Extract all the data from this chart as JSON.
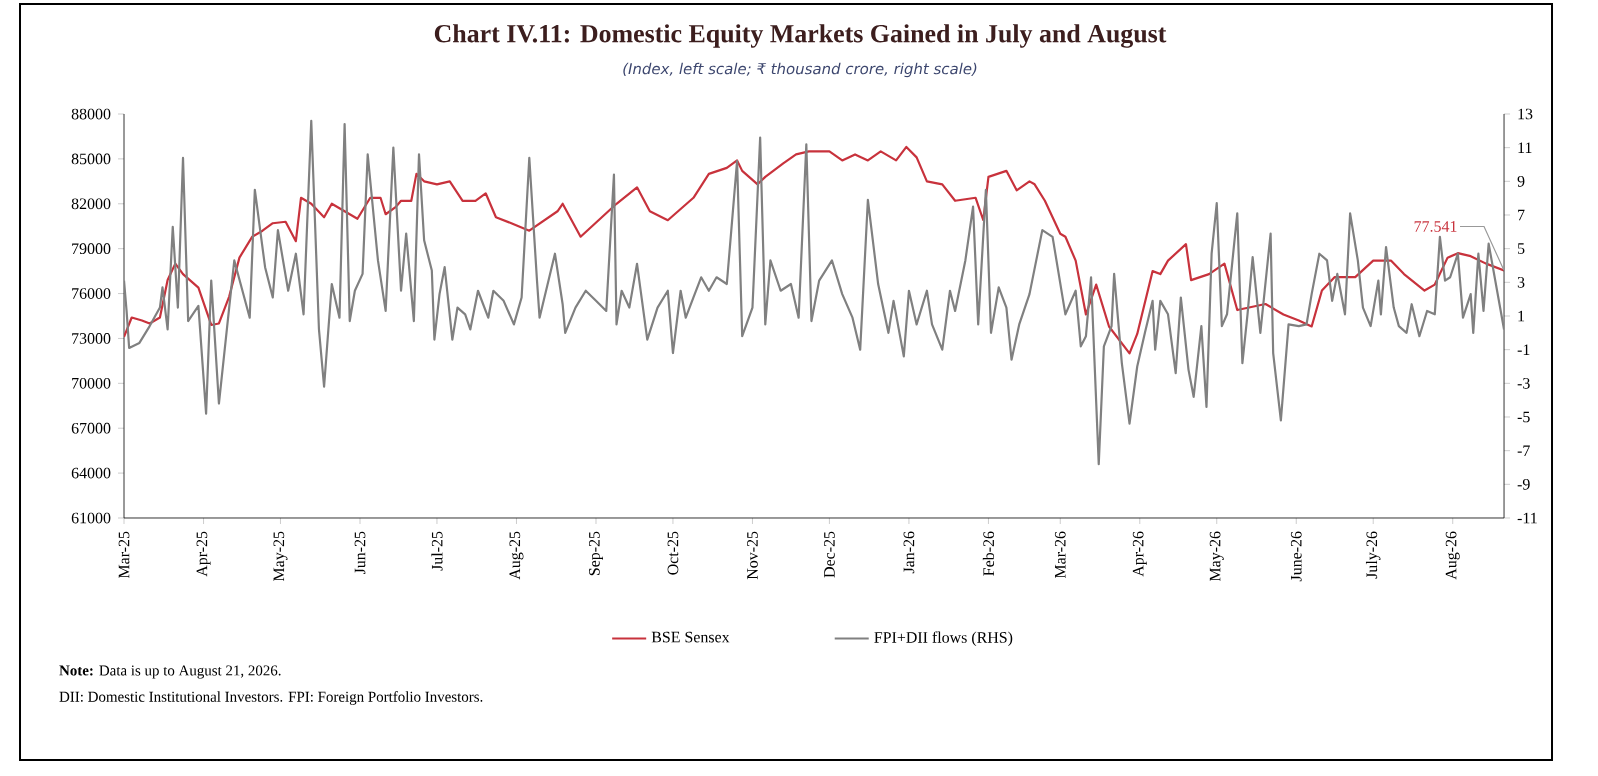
{
  "chart_data": {
    "type": "line",
    "title": "Chart IV.11: Domestic Equity Markets Gained in July and August",
    "subtitle": "(Index, left scale; ₹ thousand crore, right scale)",
    "xlim": [
      "2025-03-01",
      "2026-08-21"
    ],
    "xticks": [
      {
        "value": "2025-03-01",
        "label": "Mar-25"
      },
      {
        "value": "2025-04-01",
        "label": "Apr-25"
      },
      {
        "value": "2025-05-01",
        "label": "May-25"
      },
      {
        "value": "2025-06-01",
        "label": "Jun-25"
      },
      {
        "value": "2025-07-01",
        "label": "Jul-25"
      },
      {
        "value": "2025-08-01",
        "label": "Aug-25"
      },
      {
        "value": "2025-09-01",
        "label": "Sep-25"
      },
      {
        "value": "2025-10-01",
        "label": "Oct-25"
      },
      {
        "value": "2025-11-01",
        "label": "Nov-25"
      },
      {
        "value": "2025-12-01",
        "label": "Dec-25"
      },
      {
        "value": "2026-01-01",
        "label": "Jan-26"
      },
      {
        "value": "2026-02-01",
        "label": "Feb-26"
      },
      {
        "value": "2026-03-01",
        "label": "Mar-26"
      },
      {
        "value": "2026-04-01",
        "label": "Apr-26"
      },
      {
        "value": "2026-05-01",
        "label": "May-26"
      },
      {
        "value": "2026-06-01",
        "label": "June-26"
      },
      {
        "value": "2026-07-01",
        "label": "July-26"
      },
      {
        "value": "2026-08-01",
        "label": "Aug-26"
      }
    ],
    "ylim": [
      61000,
      88000
    ],
    "yticks": [
      61000,
      64000,
      67000,
      70000,
      73000,
      76000,
      79000,
      82000,
      85000,
      88000
    ],
    "y2lim": [
      -11,
      13
    ],
    "y2ticks": [
      -11,
      -9,
      -7,
      -5,
      -3,
      -1,
      1,
      3,
      5,
      7,
      9,
      11,
      13
    ],
    "legend": "bottom",
    "series": [
      {
        "name": "BSE Sensex",
        "color": "#c8323c",
        "x": [
          "2025-03-01",
          "2025-03-04",
          "2025-03-08",
          "2025-03-11",
          "2025-03-15",
          "2025-03-18",
          "2025-03-21",
          "2025-03-24",
          "2025-03-30",
          "2025-04-04",
          "2025-04-07",
          "2025-04-11",
          "2025-04-15",
          "2025-04-20",
          "2025-04-24",
          "2025-04-28",
          "2025-05-03",
          "2025-05-07",
          "2025-05-09",
          "2025-05-13",
          "2025-05-18",
          "2025-05-21",
          "2025-05-25",
          "2025-05-31",
          "2025-06-05",
          "2025-06-09",
          "2025-06-11",
          "2025-06-15",
          "2025-06-17",
          "2025-06-21",
          "2025-06-23",
          "2025-06-26",
          "2025-07-01",
          "2025-07-06",
          "2025-07-11",
          "2025-07-16",
          "2025-07-20",
          "2025-07-24",
          "2025-07-30",
          "2025-08-06",
          "2025-08-17",
          "2025-08-19",
          "2025-08-26",
          "2025-09-02",
          "2025-09-09",
          "2025-09-17",
          "2025-09-22",
          "2025-09-29",
          "2025-10-09",
          "2025-10-15",
          "2025-10-22",
          "2025-10-26",
          "2025-10-28",
          "2025-11-03",
          "2025-11-06",
          "2025-11-13",
          "2025-11-18",
          "2025-11-23",
          "2025-12-01",
          "2025-12-06",
          "2025-12-11",
          "2025-12-16",
          "2025-12-21",
          "2025-12-27",
          "2025-12-31",
          "2026-01-04",
          "2026-01-08",
          "2026-01-14",
          "2026-01-19",
          "2026-01-27",
          "2026-01-30",
          "2026-02-01",
          "2026-02-08",
          "2026-02-12",
          "2026-02-17",
          "2026-02-19",
          "2026-02-23",
          "2026-03-01",
          "2026-03-03",
          "2026-03-07",
          "2026-03-11",
          "2026-03-15",
          "2026-03-20",
          "2026-03-28",
          "2026-03-31",
          "2026-04-06",
          "2026-04-09",
          "2026-04-12",
          "2026-04-19",
          "2026-04-21",
          "2026-04-28",
          "2026-05-04",
          "2026-05-09",
          "2026-05-20",
          "2026-05-27",
          "2026-06-02",
          "2026-06-07",
          "2026-06-11",
          "2026-06-16",
          "2026-06-24",
          "2026-07-01",
          "2026-07-08",
          "2026-07-13",
          "2026-07-21",
          "2026-07-25",
          "2026-07-30",
          "2026-08-03",
          "2026-08-08",
          "2026-08-14",
          "2026-08-21"
        ],
        "values": [
          73100,
          74400,
          74200,
          74000,
          74400,
          76900,
          78000,
          77300,
          76400,
          73900,
          74000,
          75800,
          78400,
          79800,
          80200,
          80700,
          80800,
          79500,
          82400,
          82000,
          81100,
          82000,
          81600,
          81000,
          82400,
          82400,
          81300,
          81800,
          82200,
          82200,
          84000,
          83500,
          83300,
          83500,
          82200,
          82200,
          82700,
          81100,
          80700,
          80200,
          81500,
          82000,
          79800,
          80900,
          82000,
          83100,
          81500,
          80900,
          82400,
          84000,
          84400,
          84900,
          84200,
          83300,
          83800,
          84700,
          85300,
          85500,
          85500,
          84900,
          85300,
          84900,
          85500,
          84900,
          85800,
          85100,
          83500,
          83300,
          82200,
          82400,
          80900,
          83800,
          84200,
          82900,
          83500,
          83300,
          82200,
          80000,
          79800,
          78200,
          74600,
          76600,
          73800,
          72000,
          73300,
          77500,
          77300,
          78200,
          79300,
          76900,
          77300,
          78000,
          74900,
          75300,
          74600,
          74200,
          73800,
          76200,
          77100,
          77100,
          78200,
          78200,
          77300,
          76200,
          76600,
          78400,
          78700,
          78500,
          78000,
          77541
        ]
      },
      {
        "name": "FPI+DII flows (RHS)",
        "color": "#808080",
        "axis": "y2",
        "x": [
          "2025-03-01",
          "2025-03-02",
          "2025-03-03",
          "2025-03-07",
          "2025-03-11",
          "2025-03-15",
          "2025-03-16",
          "2025-03-18",
          "2025-03-20",
          "2025-03-22",
          "2025-03-24",
          "2025-03-26",
          "2025-03-30",
          "2025-04-02",
          "2025-04-04",
          "2025-04-07",
          "2025-04-11",
          "2025-04-13",
          "2025-04-19",
          "2025-04-21",
          "2025-04-25",
          "2025-04-28",
          "2025-04-30",
          "2025-05-04",
          "2025-05-07",
          "2025-05-10",
          "2025-05-13",
          "2025-05-16",
          "2025-05-18",
          "2025-05-21",
          "2025-05-24",
          "2025-05-26",
          "2025-05-28",
          "2025-05-30",
          "2025-06-02",
          "2025-06-04",
          "2025-06-08",
          "2025-06-11",
          "2025-06-14",
          "2025-06-17",
          "2025-06-19",
          "2025-06-22",
          "2025-06-24",
          "2025-06-26",
          "2025-06-29",
          "2025-06-30",
          "2025-07-02",
          "2025-07-04",
          "2025-07-07",
          "2025-07-09",
          "2025-07-12",
          "2025-07-14",
          "2025-07-17",
          "2025-07-21",
          "2025-07-23",
          "2025-07-27",
          "2025-07-31",
          "2025-08-03",
          "2025-08-06",
          "2025-08-09",
          "2025-08-10",
          "2025-08-16",
          "2025-08-19",
          "2025-08-20",
          "2025-08-24",
          "2025-08-28",
          "2025-09-01",
          "2025-09-05",
          "2025-09-08",
          "2025-09-09",
          "2025-09-11",
          "2025-09-14",
          "2025-09-17",
          "2025-09-21",
          "2025-09-25",
          "2025-09-29",
          "2025-10-01",
          "2025-10-04",
          "2025-10-06",
          "2025-10-09",
          "2025-10-12",
          "2025-10-15",
          "2025-10-18",
          "2025-10-22",
          "2025-10-26",
          "2025-10-28",
          "2025-11-01",
          "2025-11-04",
          "2025-11-06",
          "2025-11-08",
          "2025-11-12",
          "2025-11-16",
          "2025-11-19",
          "2025-11-22",
          "2025-11-24",
          "2025-11-27",
          "2025-12-02",
          "2025-12-06",
          "2025-12-10",
          "2025-12-13",
          "2025-12-16",
          "2025-12-20",
          "2025-12-24",
          "2025-12-26",
          "2025-12-30",
          "2026-01-01",
          "2026-01-04",
          "2026-01-08",
          "2026-01-10",
          "2026-01-14",
          "2026-01-17",
          "2026-01-19",
          "2026-01-23",
          "2026-01-26",
          "2026-01-28",
          "2026-01-31",
          "2026-02-02",
          "2026-02-05",
          "2026-02-08",
          "2026-02-10",
          "2026-02-13",
          "2026-02-17",
          "2026-02-22",
          "2026-02-26",
          "2026-03-03",
          "2026-03-07",
          "2026-03-09",
          "2026-03-11",
          "2026-03-13",
          "2026-03-16",
          "2026-03-18",
          "2026-03-21",
          "2026-03-22",
          "2026-03-25",
          "2026-03-28",
          "2026-03-31",
          "2026-04-03",
          "2026-04-06",
          "2026-04-07",
          "2026-04-09",
          "2026-04-12",
          "2026-04-15",
          "2026-04-17",
          "2026-04-20",
          "2026-04-22",
          "2026-04-25",
          "2026-04-27",
          "2026-04-29",
          "2026-05-01",
          "2026-05-03",
          "2026-05-05",
          "2026-05-09",
          "2026-05-11",
          "2026-05-13",
          "2026-05-15",
          "2026-05-18",
          "2026-05-22",
          "2026-05-23",
          "2026-05-26",
          "2026-05-29",
          "2026-06-02",
          "2026-06-05",
          "2026-06-07",
          "2026-06-10",
          "2026-06-13",
          "2026-06-15",
          "2026-06-17",
          "2026-06-20",
          "2026-06-22",
          "2026-06-25",
          "2026-06-27",
          "2026-06-30",
          "2026-07-03",
          "2026-07-04",
          "2026-07-06",
          "2026-07-09",
          "2026-07-11",
          "2026-07-14",
          "2026-07-16",
          "2026-07-19",
          "2026-07-22",
          "2026-07-25",
          "2026-07-27",
          "2026-07-29",
          "2026-07-31",
          "2026-08-03",
          "2026-08-05",
          "2026-08-08",
          "2026-08-09",
          "2026-08-11",
          "2026-08-13",
          "2026-08-15",
          "2026-08-21"
        ],
        "values": [
          3.1,
          1.3,
          -0.9,
          -0.6,
          0.4,
          1.5,
          2.7,
          0.2,
          6.3,
          1.5,
          10.4,
          0.7,
          1.6,
          -4.8,
          3.1,
          -4.2,
          1.5,
          4.3,
          0.9,
          8.5,
          3.9,
          2.1,
          6.1,
          2.5,
          4.7,
          1.1,
          12.6,
          0.2,
          -3.2,
          2.9,
          0.9,
          12.4,
          0.7,
          2.5,
          3.5,
          10.6,
          4.3,
          1.3,
          11.0,
          2.5,
          5.9,
          0.7,
          10.6,
          5.5,
          3.7,
          -0.4,
          2.3,
          3.9,
          -0.4,
          1.5,
          1.1,
          0.2,
          2.5,
          0.9,
          2.5,
          1.9,
          0.5,
          2.1,
          10.4,
          3.1,
          0.9,
          4.7,
          1.7,
          0.0,
          1.5,
          2.5,
          1.9,
          1.3,
          9.4,
          0.5,
          2.5,
          1.5,
          4.1,
          -0.4,
          1.5,
          2.5,
          -1.2,
          2.5,
          0.9,
          2.1,
          3.3,
          2.5,
          3.3,
          2.9,
          10.2,
          -0.2,
          1.5,
          11.6,
          0.5,
          4.3,
          2.5,
          2.9,
          0.9,
          11.2,
          0.7,
          3.1,
          4.3,
          2.3,
          0.9,
          -1.0,
          7.9,
          2.9,
          0.0,
          1.9,
          -1.4,
          2.5,
          0.5,
          2.5,
          0.5,
          -1.0,
          2.5,
          1.3,
          4.3,
          7.5,
          0.5,
          8.5,
          0.0,
          2.7,
          1.5,
          -1.6,
          0.5,
          2.3,
          6.1,
          5.7,
          1.1,
          2.5,
          -0.8,
          -0.2,
          3.3,
          -7.8,
          -0.8,
          0.4,
          3.5,
          -1.8,
          -5.4,
          -2.0,
          0.0,
          1.9,
          -1.0,
          1.9,
          1.1,
          -2.4,
          2.1,
          -2.2,
          -3.8,
          0.4,
          -4.4,
          4.7,
          7.7,
          0.4,
          1.1,
          7.1,
          -1.8,
          1.1,
          4.5,
          0.0,
          5.9,
          -1.2,
          -5.2,
          0.5,
          0.4,
          0.5,
          2.3,
          4.7,
          4.3,
          1.9,
          3.5,
          1.1,
          7.1,
          4.3,
          1.5,
          0.4,
          3.1,
          1.1,
          5.1,
          1.5,
          0.4,
          0.0,
          1.7,
          -0.2,
          1.3,
          1.1,
          5.7,
          3.1,
          3.3,
          4.7,
          0.9,
          2.3,
          0.0,
          4.7,
          1.3,
          5.3,
          0.2
        ]
      }
    ],
    "annotations": [
      {
        "text": "77.541",
        "x": "2026-08-21",
        "y": 77541
      },
      "**Note:** Data is up to August 21, 2026.",
      "DII: Domestic Institutional Investors. FPI: Foreign Portfolio Investors."
    ]
  }
}
